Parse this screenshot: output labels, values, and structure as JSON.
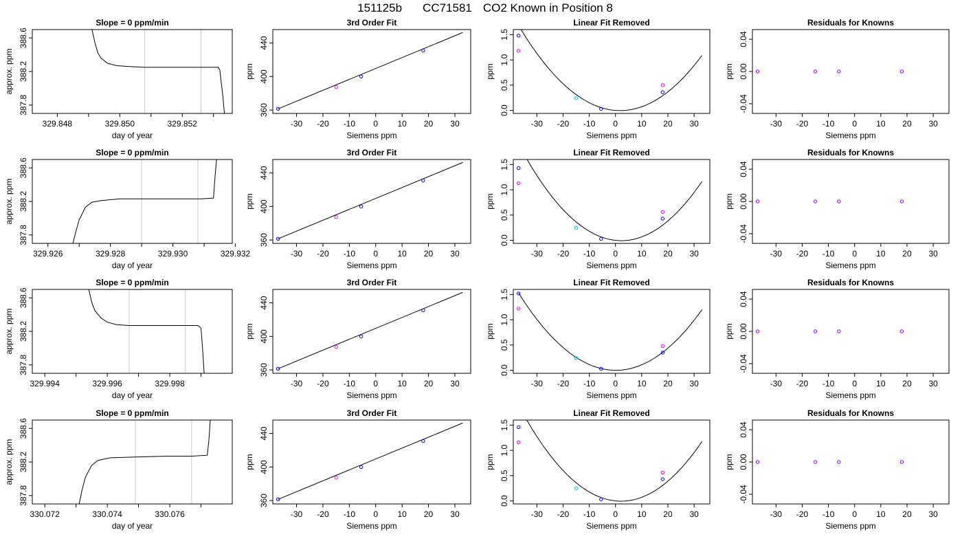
{
  "suptitle": {
    "date": "151125b",
    "id": "CC71581",
    "desc": "CO2 Known in Position  8"
  },
  "colors": {
    "line": "#000000",
    "vline": "#c8c8c8",
    "blue": "#0000ff",
    "magenta": "#ff00ff",
    "cyan": "#00bfff"
  },
  "chart_data": [
    {
      "row": 0,
      "type": "line",
      "title": "Slope =  0  ppm/min",
      "xlabel": "day of year",
      "ylabel": "approx. ppm",
      "xlim": [
        329.8472,
        329.8536
      ],
      "ylim": [
        387.7,
        388.7
      ],
      "xticks": [
        329.848,
        329.85,
        329.852
      ],
      "xtick_labels": [
        "329.848",
        "329.850",
        "329.852"
      ],
      "xminor": [
        329.849,
        329.851,
        329.853
      ],
      "yticks": [
        387.8,
        388.2,
        388.6
      ],
      "ytick_labels": [
        "387.8",
        "388.2",
        "388.6"
      ],
      "vlines": [
        329.8508,
        329.8526
      ],
      "trace": [
        [
          329.8491,
          388.72
        ],
        [
          329.8492,
          388.55
        ],
        [
          329.8493,
          388.42
        ],
        [
          329.8494,
          388.36
        ],
        [
          329.8496,
          388.3
        ],
        [
          329.8499,
          388.27
        ],
        [
          329.8503,
          388.26
        ],
        [
          329.8508,
          388.25
        ],
        [
          329.8515,
          388.25
        ],
        [
          329.8522,
          388.25
        ],
        [
          329.8529,
          388.25
        ],
        [
          329.85315,
          388.25
        ],
        [
          329.8532,
          388.22
        ],
        [
          329.8533,
          387.9
        ],
        [
          329.85335,
          387.7
        ]
      ]
    },
    {
      "row": 1,
      "type": "line",
      "title": "Slope =  0  ppm/min",
      "xlabel": "day of year",
      "ylabel": "approx. ppm",
      "xlim": [
        329.9255,
        329.9319
      ],
      "ylim": [
        387.7,
        388.7
      ],
      "xticks": [
        329.926,
        329.928,
        329.93,
        329.932
      ],
      "xtick_labels": [
        "329.926",
        "329.928",
        "329.930",
        "329.932"
      ],
      "xminor": [
        329.927,
        329.929,
        329.931
      ],
      "yticks": [
        387.8,
        388.2,
        388.6
      ],
      "ytick_labels": [
        "387.8",
        "388.2",
        "388.6"
      ],
      "vlines": [
        329.929,
        329.9308
      ],
      "trace": [
        [
          329.9268,
          387.7
        ],
        [
          329.9269,
          387.85
        ],
        [
          329.927,
          387.98
        ],
        [
          329.9272,
          388.13
        ],
        [
          329.9274,
          388.19
        ],
        [
          329.9277,
          388.21
        ],
        [
          329.9283,
          388.23
        ],
        [
          329.929,
          388.23
        ],
        [
          329.9297,
          388.23
        ],
        [
          329.9304,
          388.23
        ],
        [
          329.9309,
          388.23
        ],
        [
          329.9313,
          388.24
        ],
        [
          329.93135,
          388.5
        ],
        [
          329.9314,
          388.72
        ]
      ]
    },
    {
      "row": 2,
      "type": "line",
      "title": "Slope =  0  ppm/min",
      "xlabel": "day of year",
      "ylabel": "approx. ppm",
      "xlim": [
        329.9936,
        330.0
      ],
      "ylim": [
        387.7,
        388.7
      ],
      "xticks": [
        329.994,
        329.996,
        329.998
      ],
      "xtick_labels": [
        "329.994",
        "329.996",
        "329.998"
      ],
      "xminor": [
        329.995,
        329.997,
        329.999
      ],
      "yticks": [
        387.8,
        388.2,
        388.6
      ],
      "ytick_labels": [
        "387.8",
        "388.2",
        "388.6"
      ],
      "vlines": [
        329.9967,
        329.9985
      ],
      "trace": [
        [
          329.9954,
          388.72
        ],
        [
          329.9955,
          388.55
        ],
        [
          329.9956,
          388.45
        ],
        [
          329.9958,
          388.36
        ],
        [
          329.996,
          388.31
        ],
        [
          329.9963,
          388.28
        ],
        [
          329.9967,
          388.27
        ],
        [
          329.9975,
          388.27
        ],
        [
          329.9985,
          388.27
        ],
        [
          329.9989,
          388.27
        ],
        [
          329.999,
          388.24
        ],
        [
          329.99905,
          388.0
        ],
        [
          329.9991,
          387.7
        ]
      ]
    },
    {
      "row": 3,
      "type": "line",
      "title": "Slope =  0  ppm/min",
      "xlabel": "day of year",
      "ylabel": "approx. ppm",
      "xlim": [
        330.0716,
        330.078
      ],
      "ylim": [
        387.7,
        388.7
      ],
      "xticks": [
        330.072,
        330.074,
        330.076
      ],
      "xtick_labels": [
        "330.072",
        "330.074",
        "330.076"
      ],
      "xminor": [
        330.073,
        330.075,
        330.077
      ],
      "yticks": [
        387.8,
        388.2,
        388.6
      ],
      "ytick_labels": [
        "387.8",
        "388.2",
        "388.6"
      ],
      "vlines": [
        330.0749,
        330.0767
      ],
      "trace": [
        [
          330.0731,
          387.7
        ],
        [
          330.0732,
          387.88
        ],
        [
          330.0733,
          388.02
        ],
        [
          330.0735,
          388.16
        ],
        [
          330.0737,
          388.22
        ],
        [
          330.0741,
          388.25
        ],
        [
          330.0749,
          388.26
        ],
        [
          330.0759,
          388.27
        ],
        [
          330.0767,
          388.27
        ],
        [
          330.0772,
          388.28
        ],
        [
          330.07725,
          388.45
        ],
        [
          330.0773,
          388.72
        ]
      ]
    },
    {
      "row": 0,
      "type": "scatter",
      "title": "3rd Order Fit",
      "xlabel": "Siemens ppm",
      "ylabel": "ppm",
      "xlim": [
        -39,
        36
      ],
      "ylim": [
        356,
        456
      ],
      "xticks": [
        -30,
        -20,
        -10,
        0,
        10,
        20,
        30
      ],
      "xtick_labels": [
        "-30",
        "-20",
        "-10",
        "0",
        "10",
        "20",
        "30"
      ],
      "yticks": [
        360,
        400,
        440
      ],
      "ytick_labels": [
        "360",
        "400",
        "440"
      ],
      "fit_line": [
        [
          -37,
          361.5
        ],
        [
          33,
          452.5
        ]
      ],
      "points": [
        [
          -37,
          361.5,
          "blue"
        ],
        [
          -15,
          387.5,
          "magenta"
        ],
        [
          -5.5,
          400.0,
          "blue"
        ],
        [
          18,
          431.0,
          "blue"
        ]
      ]
    },
    {
      "row": 1,
      "type": "scatter",
      "title": "3rd Order Fit",
      "xlabel": "Siemens ppm",
      "ylabel": "ppm",
      "xlim": [
        -39,
        36
      ],
      "ylim": [
        356,
        456
      ],
      "xticks": [
        -30,
        -20,
        -10,
        0,
        10,
        20,
        30
      ],
      "xtick_labels": [
        "-30",
        "-20",
        "-10",
        "0",
        "10",
        "20",
        "30"
      ],
      "yticks": [
        360,
        400,
        440
      ],
      "ytick_labels": [
        "360",
        "400",
        "440"
      ],
      "fit_line": [
        [
          -37,
          361.5
        ],
        [
          33,
          452.5
        ]
      ],
      "points": [
        [
          -37,
          361.5,
          "blue"
        ],
        [
          -15,
          387.5,
          "magenta"
        ],
        [
          -5.5,
          400.0,
          "blue"
        ],
        [
          18,
          431.0,
          "blue"
        ]
      ]
    },
    {
      "row": 2,
      "type": "scatter",
      "title": "3rd Order Fit",
      "xlabel": "Siemens ppm",
      "ylabel": "ppm",
      "xlim": [
        -39,
        36
      ],
      "ylim": [
        356,
        456
      ],
      "xticks": [
        -30,
        -20,
        -10,
        0,
        10,
        20,
        30
      ],
      "xtick_labels": [
        "-30",
        "-20",
        "-10",
        "0",
        "10",
        "20",
        "30"
      ],
      "yticks": [
        360,
        400,
        440
      ],
      "ytick_labels": [
        "360",
        "400",
        "440"
      ],
      "fit_line": [
        [
          -37,
          361.5
        ],
        [
          33,
          452.5
        ]
      ],
      "points": [
        [
          -37,
          361.5,
          "blue"
        ],
        [
          -15,
          387.5,
          "magenta"
        ],
        [
          -5.5,
          400.0,
          "blue"
        ],
        [
          18,
          431.0,
          "blue"
        ]
      ]
    },
    {
      "row": 3,
      "type": "scatter",
      "title": "3rd Order Fit",
      "xlabel": "Siemens ppm",
      "ylabel": "ppm",
      "xlim": [
        -39,
        36
      ],
      "ylim": [
        356,
        456
      ],
      "xticks": [
        -30,
        -20,
        -10,
        0,
        10,
        20,
        30
      ],
      "xtick_labels": [
        "-30",
        "-20",
        "-10",
        "0",
        "10",
        "20",
        "30"
      ],
      "yticks": [
        360,
        400,
        440
      ],
      "ytick_labels": [
        "360",
        "400",
        "440"
      ],
      "fit_line": [
        [
          -37,
          361.5
        ],
        [
          33,
          452.5
        ]
      ],
      "points": [
        [
          -37,
          361.5,
          "blue"
        ],
        [
          -15,
          387.5,
          "magenta"
        ],
        [
          -5.5,
          400.0,
          "blue"
        ],
        [
          18,
          431.0,
          "blue"
        ]
      ]
    },
    {
      "row": 0,
      "type": "scatter",
      "title": "Linear Fit Removed",
      "xlabel": "Siemens ppm",
      "ylabel": "ppm",
      "xlim": [
        -39,
        36
      ],
      "ylim": [
        -0.06,
        1.6
      ],
      "xticks": [
        -30,
        -20,
        -10,
        0,
        10,
        20,
        30
      ],
      "xtick_labels": [
        "-30",
        "-20",
        "-10",
        "0",
        "10",
        "20",
        "30"
      ],
      "yticks": [
        0.0,
        0.5,
        1.0,
        1.5
      ],
      "ytick_labels": [
        "0.0",
        "0.5",
        "1.0",
        "1.5"
      ],
      "curve": {
        "a": 0.00112,
        "b": -0.004,
        "c": 0.0,
        "xmin": -37,
        "xmax": 33
      },
      "points": [
        [
          -37,
          1.48,
          "blue"
        ],
        [
          -37,
          1.18,
          "magenta"
        ],
        [
          -15,
          0.24,
          "cyan"
        ],
        [
          -5.5,
          0.03,
          "blue"
        ],
        [
          18,
          0.36,
          "blue"
        ],
        [
          18,
          0.5,
          "magenta"
        ]
      ]
    },
    {
      "row": 1,
      "type": "scatter",
      "title": "Linear Fit Removed",
      "xlabel": "Siemens ppm",
      "ylabel": "ppm",
      "xlim": [
        -39,
        36
      ],
      "ylim": [
        -0.06,
        1.6
      ],
      "xticks": [
        -30,
        -20,
        -10,
        0,
        10,
        20,
        30
      ],
      "xtick_labels": [
        "-30",
        "-20",
        "-10",
        "0",
        "10",
        "20",
        "30"
      ],
      "yticks": [
        0.0,
        0.5,
        1.0,
        1.5
      ],
      "ytick_labels": [
        "0.0",
        "0.5",
        "1.0",
        "1.5"
      ],
      "curve": {
        "a": 0.00124,
        "b": -0.0056,
        "c": 0.0,
        "xmin": -37,
        "xmax": 33
      },
      "points": [
        [
          -37,
          1.43,
          "blue"
        ],
        [
          -37,
          1.13,
          "magenta"
        ],
        [
          -15,
          0.25,
          "cyan"
        ],
        [
          -5.5,
          0.03,
          "blue"
        ],
        [
          18,
          0.43,
          "blue"
        ],
        [
          18,
          0.56,
          "magenta"
        ]
      ]
    },
    {
      "row": 2,
      "type": "scatter",
      "title": "Linear Fit Removed",
      "xlabel": "Siemens ppm",
      "ylabel": "ppm",
      "xlim": [
        -39,
        36
      ],
      "ylim": [
        -0.06,
        1.6
      ],
      "xticks": [
        -30,
        -20,
        -10,
        0,
        10,
        20,
        30
      ],
      "xtick_labels": [
        "-30",
        "-20",
        "-10",
        "0",
        "10",
        "20",
        "30"
      ],
      "yticks": [
        0.0,
        0.5,
        1.0,
        1.5
      ],
      "ytick_labels": [
        "0.0",
        "0.5",
        "1.0",
        "1.5"
      ],
      "curve": {
        "a": 0.00111,
        "b": -0.0003,
        "c": 0.0,
        "xmin": -37,
        "xmax": 33
      },
      "points": [
        [
          -37,
          1.52,
          "blue"
        ],
        [
          -37,
          1.22,
          "magenta"
        ],
        [
          -15,
          0.24,
          "cyan"
        ],
        [
          -5.5,
          0.03,
          "blue"
        ],
        [
          18,
          0.35,
          "blue"
        ],
        [
          18,
          0.48,
          "magenta"
        ]
      ]
    },
    {
      "row": 3,
      "type": "scatter",
      "title": "Linear Fit Removed",
      "xlabel": "Siemens ppm",
      "ylabel": "ppm",
      "xlim": [
        -39,
        36
      ],
      "ylim": [
        -0.06,
        1.6
      ],
      "xticks": [
        -30,
        -20,
        -10,
        0,
        10,
        20,
        30
      ],
      "xtick_labels": [
        "-30",
        "-20",
        "-10",
        "0",
        "10",
        "20",
        "30"
      ],
      "yticks": [
        0.0,
        0.5,
        1.0,
        1.5
      ],
      "ytick_labels": [
        "0.0",
        "0.5",
        "1.0",
        "1.5"
      ],
      "curve": {
        "a": 0.00124,
        "b": -0.0053,
        "c": 0.0,
        "xmin": -37,
        "xmax": 33
      },
      "points": [
        [
          -37,
          1.46,
          "blue"
        ],
        [
          -37,
          1.16,
          "magenta"
        ],
        [
          -15,
          0.25,
          "cyan"
        ],
        [
          -5.5,
          0.03,
          "blue"
        ],
        [
          18,
          0.43,
          "blue"
        ],
        [
          18,
          0.56,
          "magenta"
        ]
      ]
    },
    {
      "row": 0,
      "type": "scatter",
      "title": "Residuals for Knowns",
      "xlabel": "Siemens ppm",
      "ylabel": "ppm",
      "xlim": [
        -39,
        36
      ],
      "ylim": [
        -0.052,
        0.052
      ],
      "xticks": [
        -30,
        -20,
        -10,
        0,
        10,
        20,
        30
      ],
      "xtick_labels": [
        "-30",
        "-20",
        "-10",
        "0",
        "10",
        "20",
        "30"
      ],
      "yticks": [
        -0.04,
        0.0,
        0.04
      ],
      "ytick_labels": [
        "-0.04",
        "0.00",
        "0.04"
      ],
      "points": [
        [
          -37,
          0.0,
          "purple"
        ],
        [
          -15,
          0.0,
          "purple"
        ],
        [
          -6,
          0.0,
          "purple"
        ],
        [
          18,
          0.0,
          "purple"
        ]
      ]
    },
    {
      "row": 1,
      "type": "scatter",
      "title": "Residuals for Knowns",
      "xlabel": "Siemens ppm",
      "ylabel": "ppm",
      "xlim": [
        -39,
        36
      ],
      "ylim": [
        -0.052,
        0.052
      ],
      "xticks": [
        -30,
        -20,
        -10,
        0,
        10,
        20,
        30
      ],
      "xtick_labels": [
        "-30",
        "-20",
        "-10",
        "0",
        "10",
        "20",
        "30"
      ],
      "yticks": [
        -0.04,
        0.0,
        0.04
      ],
      "ytick_labels": [
        "-0.04",
        "0.00",
        "0.04"
      ],
      "points": [
        [
          -37,
          0.0,
          "purple"
        ],
        [
          -15,
          0.0,
          "purple"
        ],
        [
          -6,
          0.0,
          "purple"
        ],
        [
          18,
          0.0,
          "purple"
        ]
      ]
    },
    {
      "row": 2,
      "type": "scatter",
      "title": "Residuals for Knowns",
      "xlabel": "Siemens ppm",
      "ylabel": "ppm",
      "xlim": [
        -39,
        36
      ],
      "ylim": [
        -0.052,
        0.052
      ],
      "xticks": [
        -30,
        -20,
        -10,
        0,
        10,
        20,
        30
      ],
      "xtick_labels": [
        "-30",
        "-20",
        "-10",
        "0",
        "10",
        "20",
        "30"
      ],
      "yticks": [
        -0.04,
        0.0,
        0.04
      ],
      "ytick_labels": [
        "-0.04",
        "0.00",
        "0.04"
      ],
      "points": [
        [
          -37,
          0.0,
          "purple"
        ],
        [
          -15,
          0.0,
          "purple"
        ],
        [
          -6,
          0.0,
          "purple"
        ],
        [
          18,
          0.0,
          "purple"
        ]
      ]
    },
    {
      "row": 3,
      "type": "scatter",
      "title": "Residuals for Knowns",
      "xlabel": "Siemens ppm",
      "ylabel": "ppm",
      "xlim": [
        -39,
        36
      ],
      "ylim": [
        -0.052,
        0.052
      ],
      "xticks": [
        -30,
        -20,
        -10,
        0,
        10,
        20,
        30
      ],
      "xtick_labels": [
        "-30",
        "-20",
        "-10",
        "0",
        "10",
        "20",
        "30"
      ],
      "yticks": [
        -0.04,
        0.0,
        0.04
      ],
      "ytick_labels": [
        "-0.04",
        "0.00",
        "0.04"
      ],
      "points": [
        [
          -37,
          0.0,
          "purple"
        ],
        [
          -15,
          0.0,
          "purple"
        ],
        [
          -6,
          0.0,
          "purple"
        ],
        [
          18,
          0.0,
          "purple"
        ]
      ]
    }
  ]
}
